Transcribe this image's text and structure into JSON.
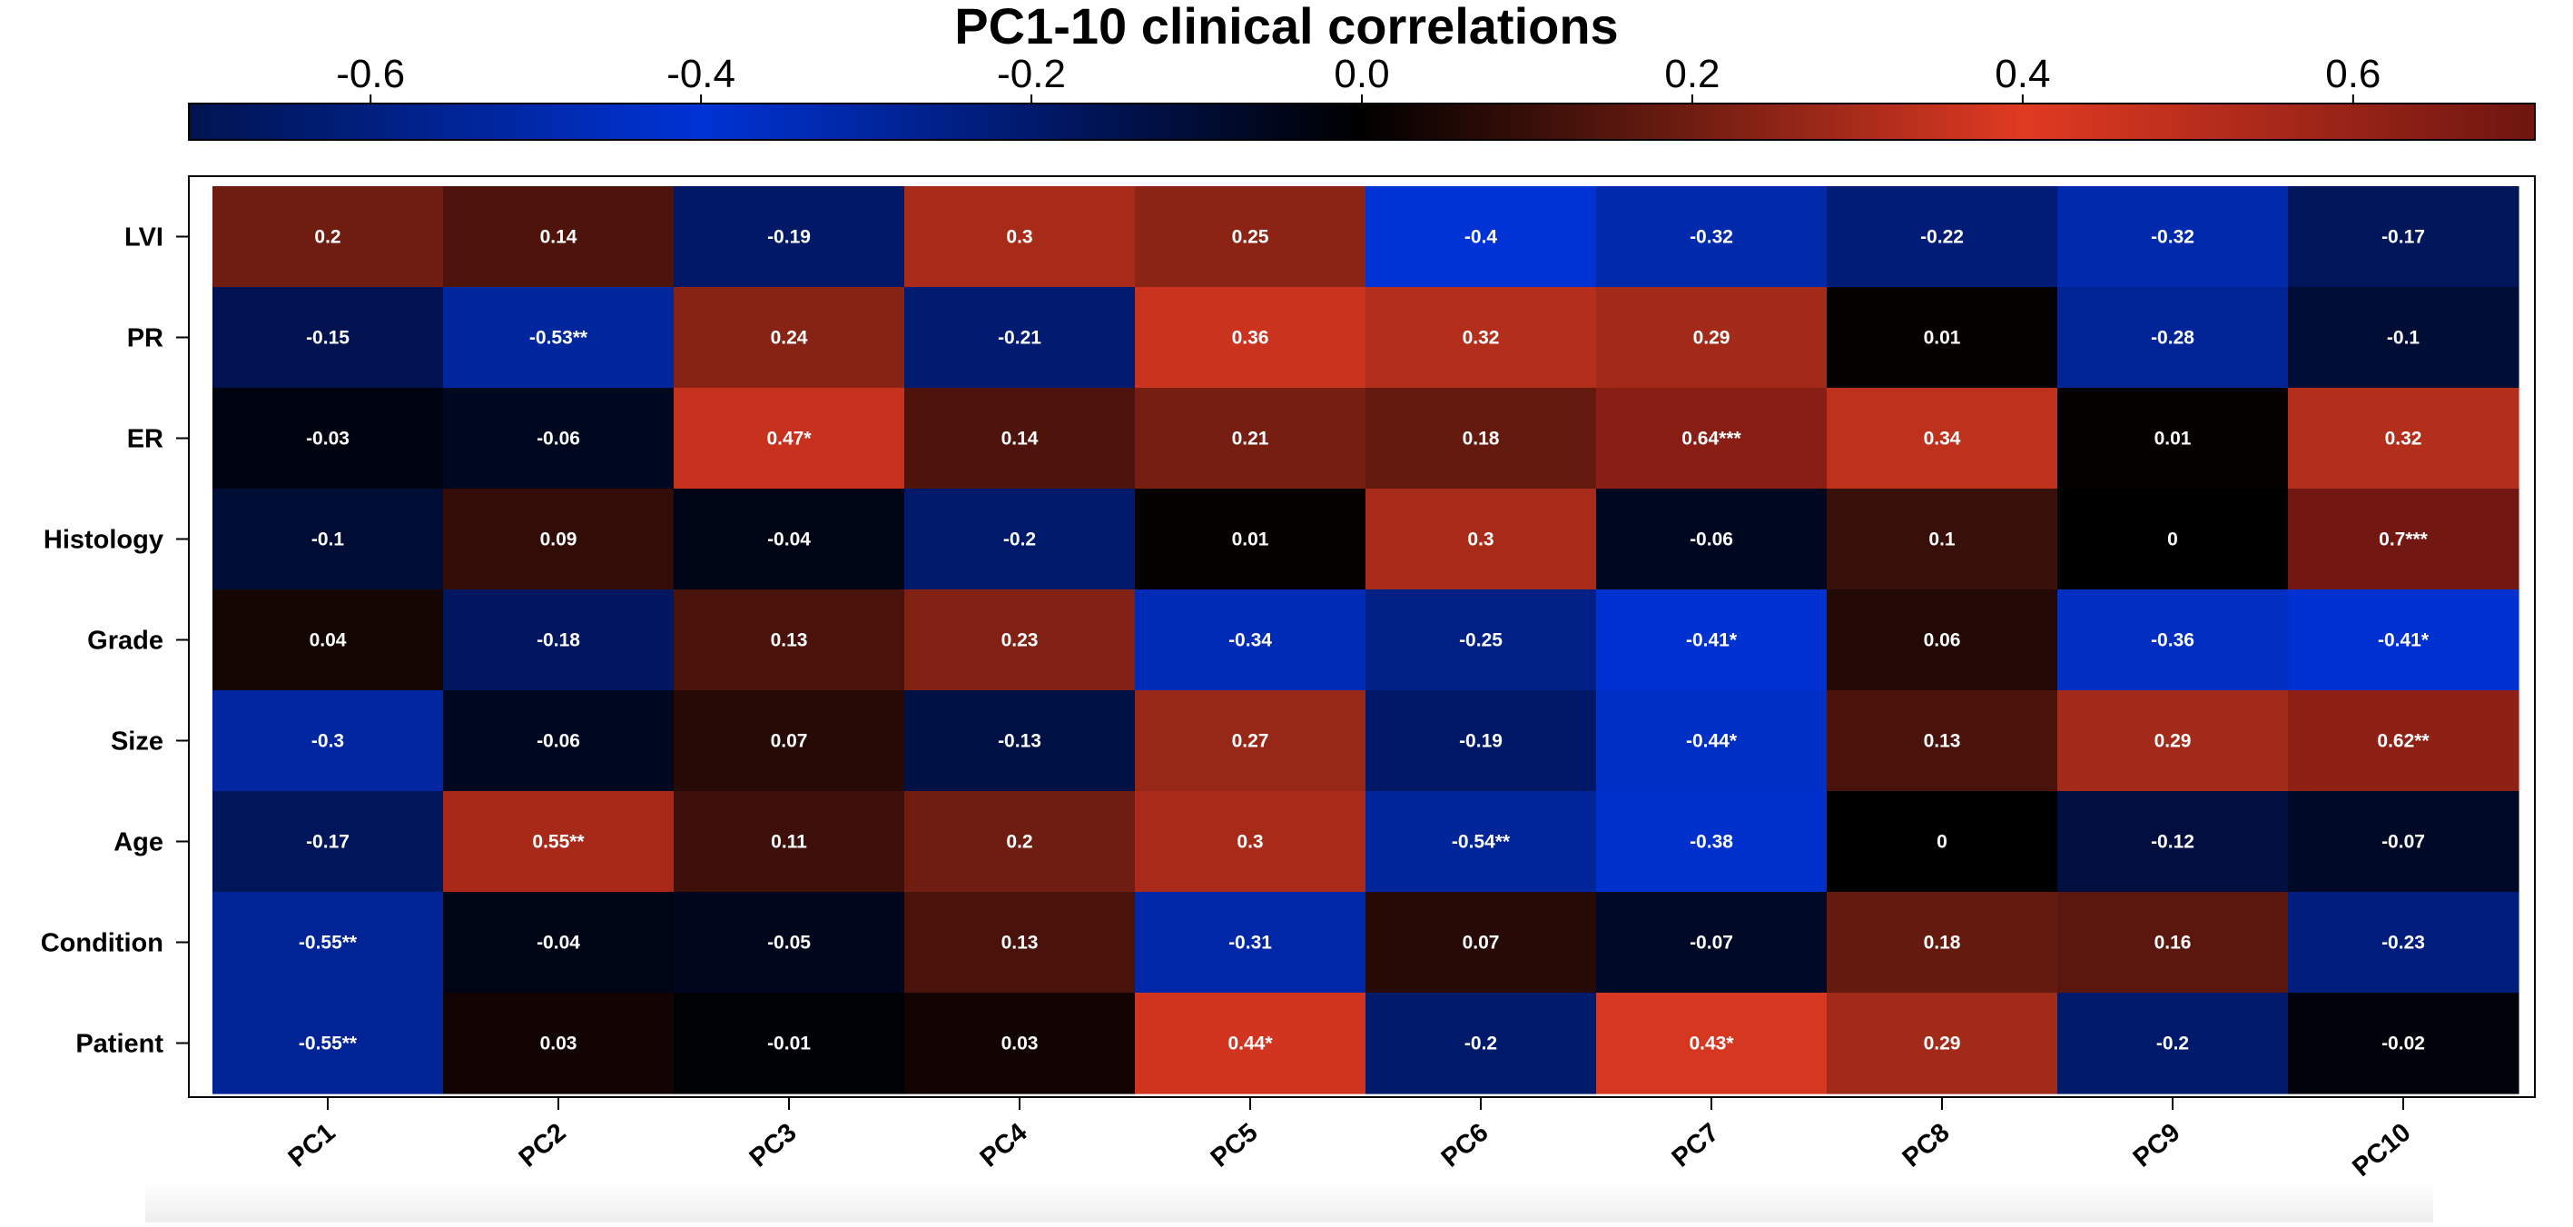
{
  "chart_data": {
    "type": "heatmap",
    "title": "PC1-10 clinical correlations",
    "xlabel": "",
    "ylabel": "",
    "columns": [
      "PC1",
      "PC2",
      "PC3",
      "PC4",
      "PC5",
      "PC6",
      "PC7",
      "PC8",
      "PC9",
      "PC10"
    ],
    "rows": [
      "LVI",
      "PR",
      "ER",
      "Histology",
      "Grade",
      "Size",
      "Age",
      "Condition",
      "Patient"
    ],
    "values": [
      [
        0.2,
        0.14,
        -0.19,
        0.3,
        0.25,
        -0.4,
        -0.32,
        -0.22,
        -0.32,
        -0.17
      ],
      [
        -0.15,
        -0.53,
        0.24,
        -0.21,
        0.36,
        0.32,
        0.29,
        0.01,
        -0.28,
        -0.1
      ],
      [
        -0.03,
        -0.06,
        0.47,
        0.14,
        0.21,
        0.18,
        0.64,
        0.34,
        0.01,
        0.32
      ],
      [
        -0.1,
        0.09,
        -0.04,
        -0.2,
        0.01,
        0.3,
        -0.06,
        0.1,
        0,
        0.7
      ],
      [
        0.04,
        -0.18,
        0.13,
        0.23,
        -0.34,
        -0.25,
        -0.41,
        0.06,
        -0.36,
        -0.41
      ],
      [
        -0.3,
        -0.06,
        0.07,
        -0.13,
        0.27,
        -0.19,
        -0.44,
        0.13,
        0.29,
        0.62
      ],
      [
        -0.17,
        0.55,
        0.11,
        0.2,
        0.3,
        -0.54,
        -0.38,
        0,
        -0.12,
        -0.07
      ],
      [
        -0.55,
        -0.04,
        -0.05,
        0.13,
        -0.31,
        0.07,
        -0.07,
        0.18,
        0.16,
        -0.23
      ],
      [
        -0.55,
        0.03,
        -0.01,
        0.03,
        0.44,
        -0.2,
        0.43,
        0.29,
        -0.2,
        -0.02
      ]
    ],
    "labels": [
      [
        "0.2",
        "0.14",
        "-0.19",
        "0.3",
        "0.25",
        "-0.4",
        "-0.32",
        "-0.22",
        "-0.32",
        "-0.17"
      ],
      [
        "-0.15",
        "-0.53**",
        "0.24",
        "-0.21",
        "0.36",
        "0.32",
        "0.29",
        "0.01",
        "-0.28",
        "-0.1"
      ],
      [
        "-0.03",
        "-0.06",
        "0.47*",
        "0.14",
        "0.21",
        "0.18",
        "0.64***",
        "0.34",
        "0.01",
        "0.32"
      ],
      [
        "-0.1",
        "0.09",
        "-0.04",
        "-0.2",
        "0.01",
        "0.3",
        "-0.06",
        "0.1",
        "0",
        "0.7***"
      ],
      [
        "0.04",
        "-0.18",
        "0.13",
        "0.23",
        "-0.34",
        "-0.25",
        "-0.41*",
        "0.06",
        "-0.36",
        "-0.41*"
      ],
      [
        "-0.3",
        "-0.06",
        "0.07",
        "-0.13",
        "0.27",
        "-0.19",
        "-0.44*",
        "0.13",
        "0.29",
        "0.62**"
      ],
      [
        "-0.17",
        "0.55**",
        "0.11",
        "0.2",
        "0.3",
        "-0.54**",
        "-0.38",
        "0",
        "-0.12",
        "-0.07"
      ],
      [
        "-0.55**",
        "-0.04",
        "-0.05",
        "0.13",
        "-0.31",
        "0.07",
        "-0.07",
        "0.18",
        "0.16",
        "-0.23"
      ],
      [
        "-0.55**",
        "0.03",
        "-0.01",
        "0.03",
        "0.44*",
        "-0.2",
        "0.43*",
        "0.29",
        "-0.2",
        "-0.02"
      ]
    ],
    "colorbar": {
      "range": [
        -0.71,
        0.71
      ],
      "ticks": [
        -0.6,
        -0.4,
        -0.2,
        0.0,
        0.2,
        0.4,
        0.6
      ],
      "tick_labels": [
        "-0.6",
        "-0.4",
        "-0.2",
        "0.0",
        "0.2",
        "0.4",
        "0.6"
      ],
      "placement": "top",
      "colors": {
        "deep_negative": "#00144f",
        "mid_negative": "#0033d6",
        "zero": "#000000",
        "mid_positive": "#e03a22",
        "deep_positive": "#6e1610"
      }
    }
  }
}
